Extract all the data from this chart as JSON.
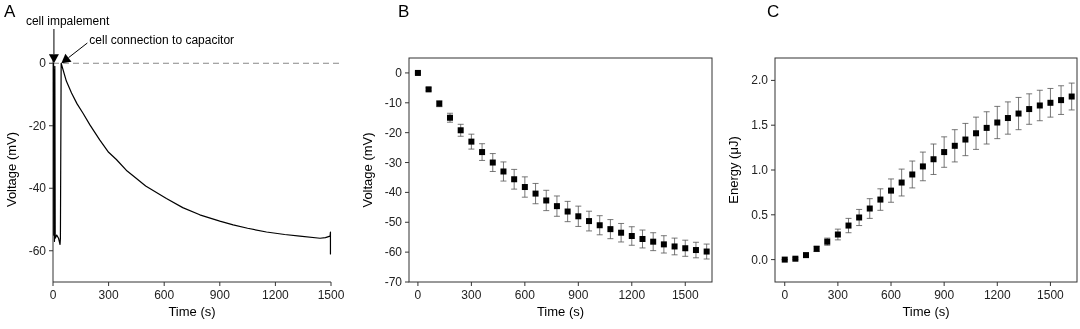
{
  "chart_data": [
    {
      "type": "line",
      "title": "A",
      "xlabel": "Time (s)",
      "ylabel": "Voltage (mV)",
      "xlim": [
        0,
        1500
      ],
      "ylim": [
        -70,
        2
      ],
      "xticks": [
        0,
        300,
        600,
        900,
        1200,
        1500
      ],
      "yticks": [
        0,
        -20,
        -40,
        -60
      ],
      "x": [
        0,
        3,
        4,
        6,
        8,
        10,
        12,
        20,
        30,
        38,
        40,
        44,
        72,
        100,
        130,
        162,
        200,
        252,
        300,
        342,
        400,
        432,
        500,
        612,
        700,
        792,
        900,
        972,
        1050,
        1152,
        1250,
        1332,
        1441,
        1470,
        1495,
        1497,
        1497,
        1497
      ],
      "series": [
        {
          "color": "#000000",
          "values": [
            0,
            0,
            -55,
            -2,
            -57,
            -1,
            -56,
            -55,
            -56,
            -58,
            -56,
            0,
            -5.7,
            -9.5,
            -13,
            -16,
            -19.8,
            -24.5,
            -28.5,
            -30.8,
            -34.5,
            -36,
            -39.3,
            -43.3,
            -46.2,
            -48.5,
            -50.5,
            -51.7,
            -52.8,
            -54,
            -54.8,
            -55.3,
            -56,
            -55.8,
            -55.3,
            -54,
            -61,
            -55.5
          ]
        }
      ],
      "ref_lines": [
        {
          "axis": "y",
          "value": 0,
          "color": "#888888",
          "line_style": "dashed"
        }
      ],
      "annotations": [
        {
          "text": "cell impalement",
          "x": 5,
          "y": 0
        },
        {
          "text": "cell connection to capacitor",
          "x": 45,
          "y": 0
        }
      ]
    },
    {
      "type": "scatter",
      "title": "B",
      "xlabel": "Time (s)",
      "ylabel": "Voltage (mV)",
      "xlim": [
        -50,
        1650
      ],
      "ylim": [
        -70,
        5
      ],
      "xticks": [
        0,
        300,
        600,
        900,
        1200,
        1500
      ],
      "yticks": [
        0,
        -10,
        -20,
        -30,
        -40,
        -50,
        -60,
        -70
      ],
      "marker": "square",
      "x": [
        0,
        60,
        120,
        180,
        240,
        300,
        360,
        420,
        480,
        540,
        600,
        660,
        720,
        780,
        840,
        900,
        960,
        1020,
        1080,
        1140,
        1200,
        1260,
        1320,
        1380,
        1440,
        1500,
        1560,
        1620
      ],
      "series": [
        {
          "color": "#000000",
          "values": [
            0,
            -5.5,
            -10.3,
            -15,
            -19.2,
            -23,
            -26.5,
            -30,
            -33,
            -35.6,
            -38.2,
            -40.4,
            -42.7,
            -44.6,
            -46.4,
            -48,
            -49.6,
            -51,
            -52.3,
            -53.5,
            -54.6,
            -55.6,
            -56.5,
            -57.4,
            -58.1,
            -58.7,
            -59.3,
            -59.8
          ],
          "errors": [
            0.3,
            0.5,
            1,
            1.5,
            2,
            2.5,
            2.8,
            3,
            3.2,
            3.3,
            3.4,
            3.4,
            3.4,
            3.4,
            3.4,
            3.4,
            3.3,
            3.2,
            3.2,
            3.1,
            3.1,
            3,
            3,
            2.9,
            2.8,
            2.7,
            2.6,
            2.5
          ]
        }
      ]
    },
    {
      "type": "scatter",
      "title": "C",
      "xlabel": "Time (s)",
      "ylabel": "Energy (μJ)",
      "xlim": [
        -55,
        1650
      ],
      "ylim": [
        -0.25,
        2.25
      ],
      "xticks": [
        0,
        300,
        600,
        900,
        1200,
        1500
      ],
      "yticks": [
        {
          "value": 0,
          "label": "0.0"
        },
        0.5,
        {
          "value": 1,
          "label": "1.0"
        },
        1.5,
        {
          "value": 2,
          "label": "2.0"
        }
      ],
      "marker": "square",
      "x": [
        0,
        60,
        120,
        180,
        240,
        300,
        360,
        420,
        480,
        540,
        600,
        660,
        720,
        780,
        840,
        900,
        960,
        1020,
        1080,
        1140,
        1200,
        1260,
        1320,
        1380,
        1440,
        1500,
        1560,
        1620
      ],
      "series": [
        {
          "color": "#000000",
          "values": [
            0,
            0.01,
            0.05,
            0.12,
            0.2,
            0.28,
            0.38,
            0.47,
            0.57,
            0.67,
            0.77,
            0.86,
            0.95,
            1.04,
            1.12,
            1.2,
            1.27,
            1.34,
            1.41,
            1.47,
            1.53,
            1.58,
            1.63,
            1.68,
            1.72,
            1.75,
            1.78,
            1.82
          ],
          "errors": [
            0,
            0.01,
            0.02,
            0.03,
            0.04,
            0.06,
            0.08,
            0.09,
            0.11,
            0.12,
            0.13,
            0.15,
            0.15,
            0.16,
            0.17,
            0.17,
            0.18,
            0.18,
            0.18,
            0.18,
            0.18,
            0.18,
            0.18,
            0.17,
            0.17,
            0.16,
            0.16,
            0.15
          ]
        }
      ]
    }
  ]
}
